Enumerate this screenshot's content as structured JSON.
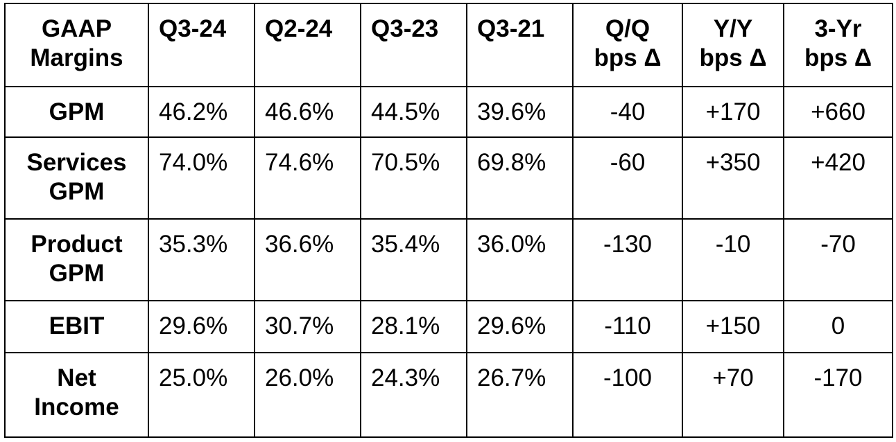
{
  "table": {
    "headers": {
      "label": [
        "GAAP",
        "Margins"
      ],
      "periods": [
        "Q3-24",
        "Q2-24",
        "Q3-23",
        "Q3-21"
      ],
      "deltas": [
        [
          "Q/Q",
          "bps Δ"
        ],
        [
          "Y/Y",
          "bps Δ"
        ],
        [
          "3-Yr",
          "bps Δ"
        ]
      ]
    },
    "rows": [
      {
        "label": [
          "GPM"
        ],
        "values": [
          "46.2%",
          "46.6%",
          "44.5%",
          "39.6%"
        ],
        "deltas": [
          "-40",
          "+170",
          "+660"
        ]
      },
      {
        "label": [
          "Services",
          "GPM"
        ],
        "values": [
          "74.0%",
          "74.6%",
          "70.5%",
          "69.8%"
        ],
        "deltas": [
          "-60",
          "+350",
          "+420"
        ]
      },
      {
        "label": [
          "Product",
          "GPM"
        ],
        "values": [
          "35.3%",
          "36.6%",
          "35.4%",
          "36.0%"
        ],
        "deltas": [
          "-130",
          "-10",
          "-70"
        ]
      },
      {
        "label": [
          "EBIT"
        ],
        "values": [
          "29.6%",
          "30.7%",
          "28.1%",
          "29.6%"
        ],
        "deltas": [
          "-110",
          "+150",
          "0"
        ]
      },
      {
        "label": [
          "Net",
          "Income"
        ],
        "values": [
          "25.0%",
          "26.0%",
          "24.3%",
          "26.7%"
        ],
        "deltas": [
          "-100",
          "+70",
          "-170"
        ]
      }
    ]
  }
}
